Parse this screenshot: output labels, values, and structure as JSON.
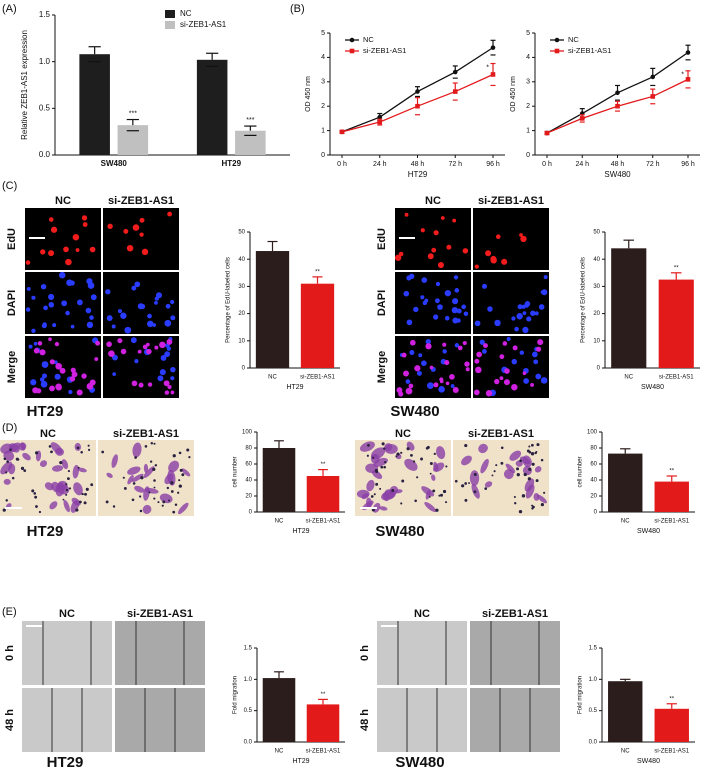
{
  "panel_labels": [
    "(A)",
    "(B)",
    "(C)",
    "(D)",
    "(E)"
  ],
  "edu_images": [
    {
      "columns": [
        "NC",
        "si-ZEB1-AS1"
      ],
      "rows": [
        "EdU",
        "DAPI",
        "Merge"
      ],
      "caption": "HT29"
    },
    {
      "columns": [
        "NC",
        "si-ZEB1-AS1"
      ],
      "rows": [
        "EdU",
        "DAPI",
        "Merge"
      ],
      "caption": "SW480"
    }
  ],
  "transwell_images": [
    {
      "columns": [
        "NC",
        "si-ZEB1-AS1"
      ],
      "caption": "HT29"
    },
    {
      "columns": [
        "NC",
        "si-ZEB1-AS1"
      ],
      "caption": "SW480"
    }
  ],
  "wound_images": [
    {
      "columns": [
        "NC",
        "si-ZEB1-AS1"
      ],
      "rows": [
        "0 h",
        "48 h"
      ],
      "caption": "HT29"
    },
    {
      "columns": [
        "NC",
        "si-ZEB1-AS1"
      ],
      "rows": [
        "0 h",
        "48 h"
      ],
      "caption": "SW480"
    }
  ],
  "chart_data": [
    {
      "type": "bar",
      "ylabel": "Relative ZEB1-AS1 expression",
      "categories": [
        "SW480",
        "HT29"
      ],
      "series": [
        {
          "name": "NC",
          "color": "#1e1e1e",
          "values": [
            1.08,
            1.02
          ],
          "errors": [
            0.08,
            0.07
          ]
        },
        {
          "name": "si-ZEB1-AS1",
          "color": "#c0c0c0",
          "values": [
            0.32,
            0.26
          ],
          "errors": [
            0.06,
            0.05
          ],
          "annotation": "***"
        }
      ],
      "ylim": [
        0,
        1.5
      ],
      "yticks": [
        {
          "value": 0,
          "label": "0.0"
        },
        0.5,
        {
          "value": 1,
          "label": "1.0"
        },
        1.5
      ]
    },
    {
      "type": "line",
      "ylabel": "OD 450 nm",
      "xlabel": "HT29",
      "categories": [
        "0 h",
        "24 h",
        "48 h",
        "72 h",
        "96 h"
      ],
      "series": [
        {
          "name": "NC",
          "color": "#111111",
          "values": [
            0.95,
            1.55,
            2.6,
            3.4,
            4.4
          ],
          "errors": [
            0.05,
            0.15,
            0.2,
            0.25,
            0.3
          ]
        },
        {
          "name": "si-ZEB1-AS1",
          "color": "#e31a1c",
          "values": [
            0.95,
            1.35,
            2.0,
            2.6,
            3.3
          ],
          "errors": [
            0.05,
            0.12,
            0.35,
            0.35,
            0.45
          ],
          "annotation": "*"
        }
      ],
      "ylim": [
        0,
        5
      ],
      "yticks": [
        0,
        1,
        2,
        3,
        4,
        5
      ]
    },
    {
      "type": "line",
      "ylabel": "OD 450 nm",
      "xlabel": "SW480",
      "categories": [
        "0 h",
        "24 h",
        "48 h",
        "72 h",
        "96 h"
      ],
      "series": [
        {
          "name": "NC",
          "color": "#111111",
          "values": [
            0.9,
            1.7,
            2.55,
            3.2,
            4.2
          ],
          "errors": [
            0.05,
            0.2,
            0.3,
            0.35,
            0.3
          ]
        },
        {
          "name": "si-ZEB1-AS1",
          "color": "#e31a1c",
          "values": [
            0.9,
            1.5,
            2.0,
            2.4,
            3.1
          ],
          "errors": [
            0.05,
            0.15,
            0.2,
            0.3,
            0.35
          ],
          "annotation": "*"
        }
      ],
      "ylim": [
        0,
        5
      ],
      "yticks": [
        0,
        1,
        2,
        3,
        4,
        5
      ]
    },
    {
      "type": "bar",
      "ylabel": "Percentage of EdU-labeled cells",
      "xlabel": "HT29",
      "categories": [
        "NC",
        "si-ZEB1-AS1"
      ],
      "values": [
        43,
        31
      ],
      "errors": [
        3.5,
        2.5
      ],
      "colors": [
        "#2b1d1b",
        "#e31a1a"
      ],
      "annotation": "**",
      "ylim": [
        0,
        50
      ],
      "yticks": [
        0,
        10,
        20,
        30,
        40,
        50
      ]
    },
    {
      "type": "bar",
      "ylabel": "Percentage of EdU-labeled cells",
      "xlabel": "SW480",
      "categories": [
        "NC",
        "si-ZEB1-AS1"
      ],
      "values": [
        44,
        32.5
      ],
      "errors": [
        3,
        2.5
      ],
      "colors": [
        "#2b1d1b",
        "#e31a1a"
      ],
      "annotation": "**",
      "ylim": [
        0,
        50
      ],
      "yticks": [
        0,
        10,
        20,
        30,
        40,
        50
      ]
    },
    {
      "type": "bar",
      "ylabel": "cell number",
      "xlabel": "HT29",
      "categories": [
        "NC",
        "si-ZEB1-AS1"
      ],
      "values": [
        80,
        45
      ],
      "errors": [
        9,
        8
      ],
      "colors": [
        "#2b1d1b",
        "#e31a1a"
      ],
      "annotation": "**",
      "ylim": [
        0,
        100
      ],
      "yticks": [
        0,
        20,
        40,
        60,
        80,
        100
      ]
    },
    {
      "type": "bar",
      "ylabel": "cell number",
      "xlabel": "SW480",
      "categories": [
        "NC",
        "si-ZEB1-AS1"
      ],
      "values": [
        73,
        38
      ],
      "errors": [
        6,
        7
      ],
      "colors": [
        "#2b1d1b",
        "#e31a1a"
      ],
      "annotation": "**",
      "ylim": [
        0,
        100
      ],
      "yticks": [
        0,
        20,
        40,
        60,
        80,
        100
      ]
    },
    {
      "type": "bar",
      "ylabel": "Fold migration",
      "xlabel": "HT29",
      "categories": [
        "NC",
        "si-ZEB1-AS1"
      ],
      "values": [
        1.02,
        0.6
      ],
      "errors": [
        0.1,
        0.08
      ],
      "colors": [
        "#2b1d1b",
        "#e31a1a"
      ],
      "annotation": "**",
      "ylim": [
        0,
        1.5
      ],
      "yticks": [
        {
          "value": 0,
          "label": "0.0"
        },
        0.5,
        {
          "value": 1,
          "label": "1.0"
        },
        1.5
      ]
    },
    {
      "type": "bar",
      "ylabel": "Fold migration",
      "xlabel": "SW480",
      "categories": [
        "NC",
        "si-ZEB1-AS1"
      ],
      "values": [
        0.97,
        0.53
      ],
      "errors": [
        0.03,
        0.08
      ],
      "colors": [
        "#2b1d1b",
        "#e31a1a"
      ],
      "annotation": "**",
      "ylim": [
        0,
        1.5
      ],
      "yticks": [
        {
          "value": 0,
          "label": "0.0"
        },
        0.5,
        {
          "value": 1,
          "label": "1.0"
        },
        1.5
      ]
    }
  ]
}
